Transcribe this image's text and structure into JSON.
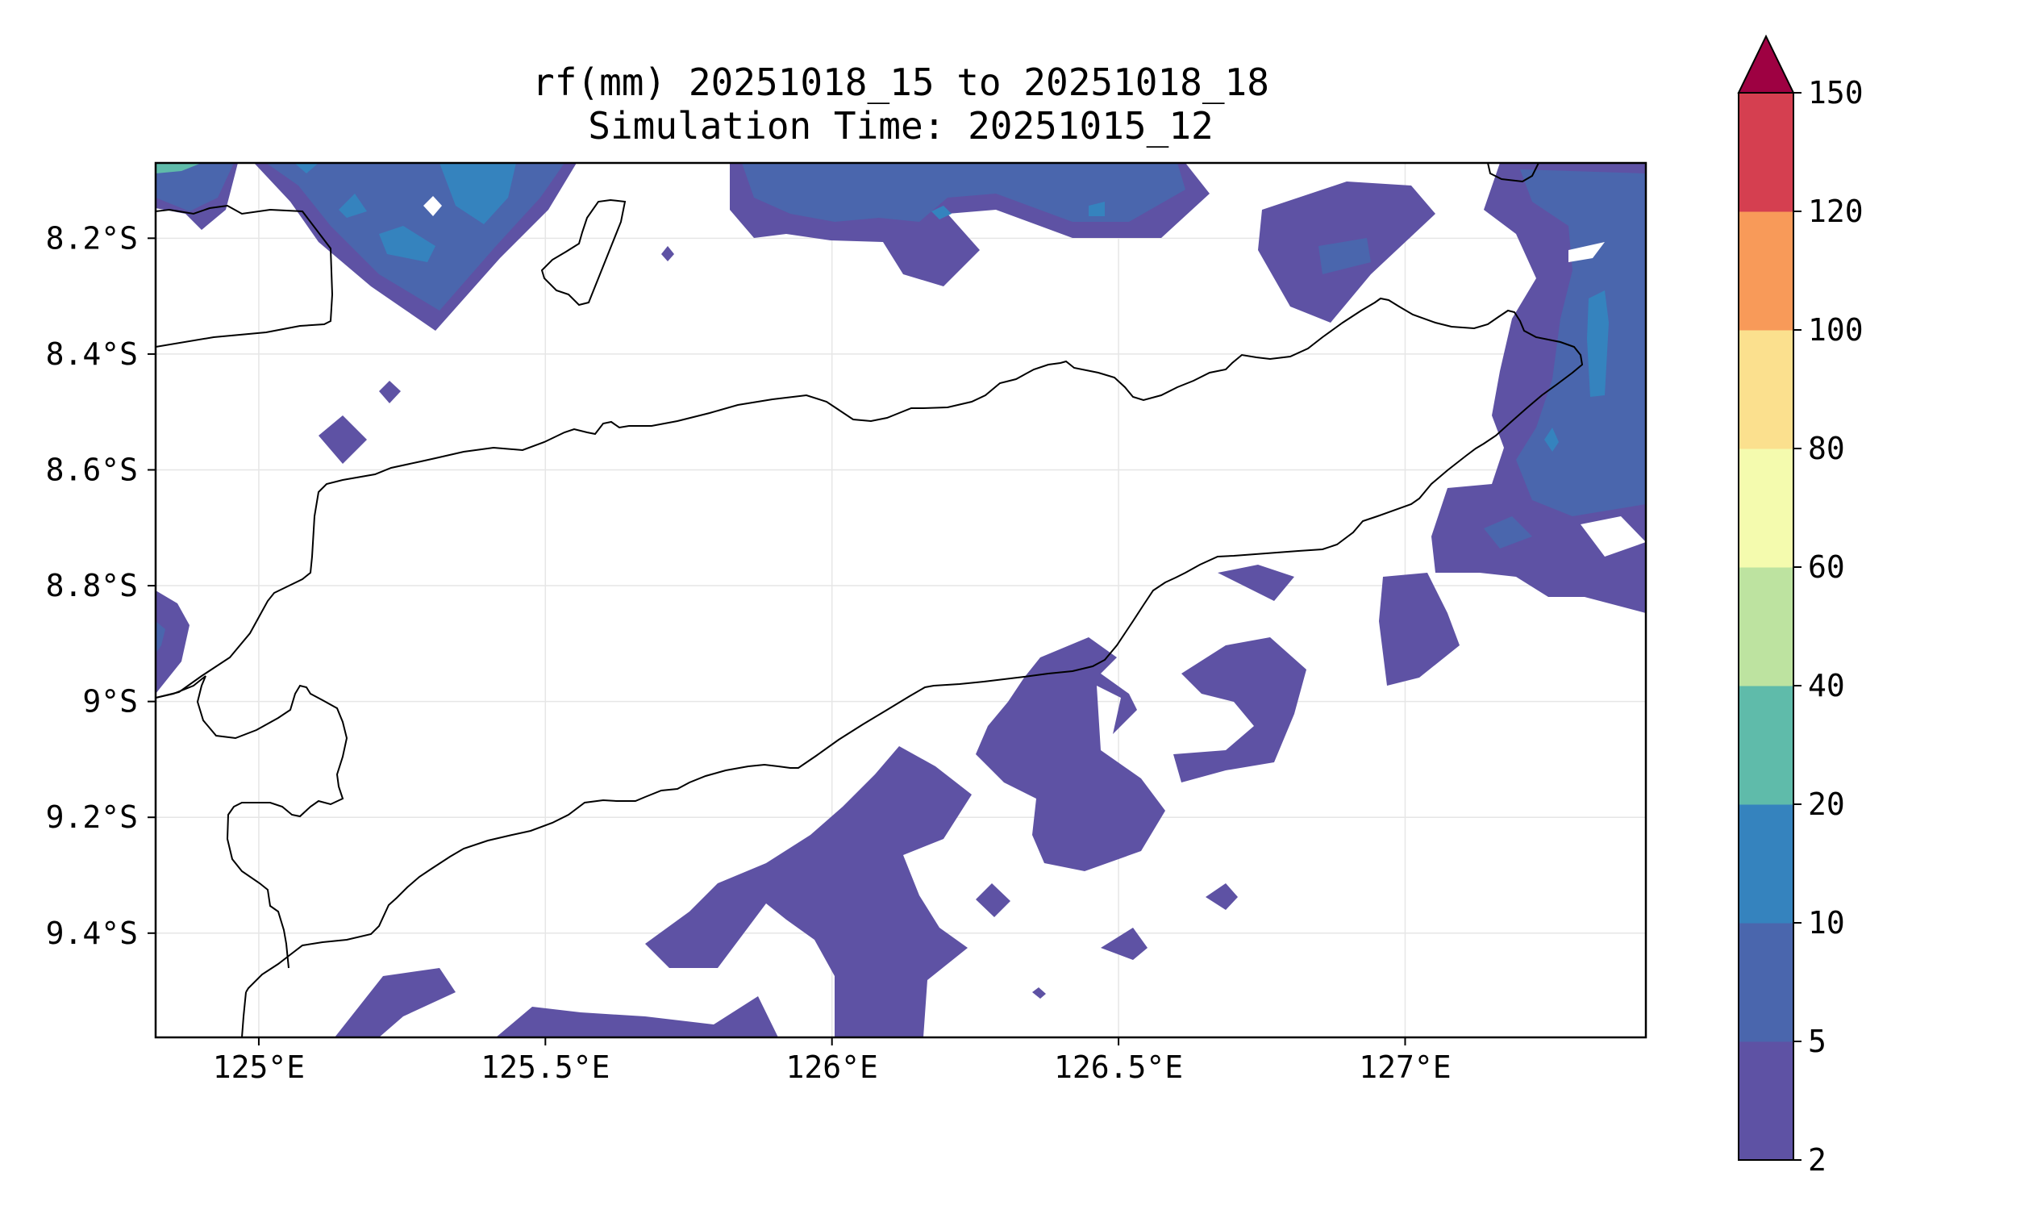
{
  "figure": {
    "title_line1": "rf(mm) 20251018_15 to 20251018_18",
    "title_line2": "Simulation Time: 20251015_12"
  },
  "map": {
    "projection": "PlateCarree",
    "lon_range": [
      124.82,
      127.42
    ],
    "lat_range": [
      -9.58,
      -8.07
    ],
    "x_ticks": [
      {
        "value": 125.0,
        "label": "125°E"
      },
      {
        "value": 125.5,
        "label": "125.5°E"
      },
      {
        "value": 126.0,
        "label": "126°E"
      },
      {
        "value": 126.5,
        "label": "126.5°E"
      },
      {
        "value": 127.0,
        "label": "127°E"
      }
    ],
    "y_ticks": [
      {
        "value": -8.2,
        "label": "8.2°S"
      },
      {
        "value": -8.4,
        "label": "8.4°S"
      },
      {
        "value": -8.6,
        "label": "8.6°S"
      },
      {
        "value": -8.8,
        "label": "8.8°S"
      },
      {
        "value": -9.0,
        "label": "9°S"
      },
      {
        "value": -9.2,
        "label": "9.2°S"
      },
      {
        "value": -9.4,
        "label": "9.4°S"
      }
    ],
    "grid": true,
    "coastline_color": "#000000"
  },
  "colorbar": {
    "levels": [
      {
        "value": 2,
        "label": "2"
      },
      {
        "value": 5,
        "label": "5"
      },
      {
        "value": 10,
        "label": "10"
      },
      {
        "value": 20,
        "label": "20"
      },
      {
        "value": 40,
        "label": "40"
      },
      {
        "value": 60,
        "label": "60"
      },
      {
        "value": 80,
        "label": "80"
      },
      {
        "value": 100,
        "label": "100"
      },
      {
        "value": 120,
        "label": "120"
      },
      {
        "value": 150,
        "label": "150"
      }
    ],
    "colors": [
      "#5e52a4",
      "#4a66ad",
      "#3583be",
      "#5fbbaa",
      "#bde3a0",
      "#f4fbae",
      "#fbe08e",
      "#f89a59",
      "#d53f50"
    ],
    "extend_color": "#9e0142",
    "extend": "max"
  },
  "rain_colors": {
    "c2": "#5e52a4",
    "c5": "#4a66ad",
    "c10": "#3583be",
    "c20": "#5fbbaa"
  }
}
